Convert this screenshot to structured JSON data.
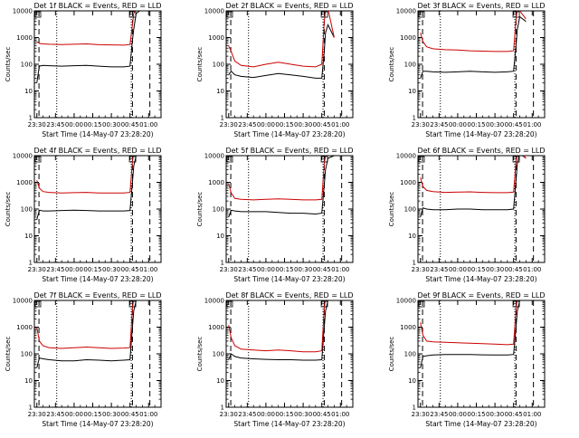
{
  "colors": {
    "background": "#ffffff",
    "events": "#000000",
    "lld": "#cc0000",
    "axis": "#000000"
  },
  "chart_data": [
    {
      "type": "line",
      "title": "Det 1f BLACK = Events, RED = LLD",
      "xlabel": "Start Time (14-May-07 23:28:20)",
      "ylabel": "Counts/sec",
      "xticks": [
        "23:30",
        "23:45",
        "00:00",
        "00:15",
        "00:30",
        "00:45",
        "01:00"
      ],
      "yticks": [
        "1",
        "10",
        "100",
        "1000",
        "10000"
      ],
      "yscale": "log",
      "ylim": [
        1,
        10000
      ],
      "xlim_minutes": [
        -2,
        100
      ],
      "series": [
        {
          "name": "Events",
          "color": "#000000",
          "x": [
            0,
            2,
            5,
            10,
            20,
            30,
            40,
            50,
            60,
            70,
            75,
            77,
            78,
            80,
            85
          ],
          "y": [
            20,
            85,
            90,
            88,
            85,
            88,
            90,
            85,
            80,
            80,
            85,
            800,
            2000,
            8000,
            12000
          ]
        },
        {
          "name": "LLD",
          "color": "#cc0000",
          "x": [
            0,
            2,
            5,
            10,
            20,
            30,
            40,
            50,
            60,
            70,
            75,
            77,
            78,
            80,
            85
          ],
          "y": [
            700,
            600,
            580,
            560,
            550,
            560,
            580,
            540,
            530,
            520,
            550,
            3000,
            8000,
            12000,
            15000
          ]
        }
      ]
    },
    {
      "type": "line",
      "title": "Det 2f BLACK = Events, RED = LLD",
      "xlabel": "Start Time (14-May-07 23:28:20)",
      "ylabel": "Counts/sec",
      "xticks": [
        "23:30",
        "23:45",
        "00:00",
        "00:15",
        "00:30",
        "00:45",
        "01:00"
      ],
      "yticks": [
        "1",
        "10",
        "100",
        "1000",
        "10000"
      ],
      "yscale": "log",
      "ylim": [
        1,
        10000
      ],
      "xlim_minutes": [
        -2,
        100
      ],
      "series": [
        {
          "name": "Events",
          "color": "#000000",
          "x": [
            0,
            2,
            5,
            10,
            20,
            30,
            40,
            50,
            60,
            70,
            75,
            77,
            78,
            80,
            85
          ],
          "y": [
            40,
            55,
            40,
            35,
            32,
            38,
            45,
            40,
            35,
            30,
            30,
            300,
            1500,
            3000,
            1000
          ]
        },
        {
          "name": "LLD",
          "color": "#cc0000",
          "x": [
            0,
            2,
            5,
            10,
            20,
            30,
            40,
            50,
            60,
            70,
            75,
            77,
            78,
            80,
            85
          ],
          "y": [
            500,
            300,
            130,
            90,
            80,
            100,
            120,
            100,
            85,
            80,
            100,
            4000,
            10000,
            12000,
            1000
          ]
        }
      ]
    },
    {
      "type": "line",
      "title": "Det 3f BLACK = Events, RED = LLD",
      "xlabel": "Start Time (14-May-07 23:28:20)",
      "ylabel": "Counts/sec",
      "xticks": [
        "23:30",
        "23:45",
        "00:00",
        "00:15",
        "00:30",
        "00:45",
        "01:00"
      ],
      "yticks": [
        "1",
        "10",
        "100",
        "1000",
        "10000"
      ],
      "yscale": "log",
      "ylim": [
        1,
        10000
      ],
      "xlim_minutes": [
        -2,
        100
      ],
      "series": [
        {
          "name": "Events",
          "color": "#000000",
          "x": [
            0,
            2,
            5,
            10,
            20,
            30,
            40,
            50,
            60,
            70,
            75,
            77,
            78,
            80,
            85
          ],
          "y": [
            30,
            55,
            55,
            52,
            50,
            52,
            55,
            52,
            50,
            52,
            55,
            500,
            2000,
            6000,
            4000
          ]
        },
        {
          "name": "LLD",
          "color": "#cc0000",
          "x": [
            0,
            2,
            5,
            10,
            20,
            30,
            40,
            50,
            60,
            70,
            75,
            77,
            78,
            80,
            85
          ],
          "y": [
            1500,
            700,
            450,
            380,
            350,
            340,
            320,
            310,
            300,
            300,
            320,
            5000,
            12000,
            10000,
            5000
          ]
        }
      ]
    },
    {
      "type": "line",
      "title": "Det 4f BLACK = Events, RED = LLD",
      "xlabel": "Start Time (14-May-07 23:28:20)",
      "ylabel": "Counts/sec",
      "xticks": [
        "23:30",
        "23:45",
        "00:00",
        "00:15",
        "00:30",
        "00:45",
        "01:00"
      ],
      "yticks": [
        "1",
        "10",
        "100",
        "1000",
        "10000"
      ],
      "yscale": "log",
      "ylim": [
        1,
        10000
      ],
      "xlim_minutes": [
        -2,
        100
      ],
      "series": [
        {
          "name": "Events",
          "color": "#000000",
          "x": [
            0,
            2,
            5,
            10,
            20,
            30,
            40,
            50,
            60,
            70,
            75,
            77,
            78,
            80,
            85
          ],
          "y": [
            40,
            90,
            85,
            85,
            88,
            90,
            88,
            85,
            85,
            85,
            88,
            1000,
            4000,
            10000,
            12000
          ]
        },
        {
          "name": "LLD",
          "color": "#cc0000",
          "x": [
            0,
            2,
            5,
            10,
            20,
            30,
            40,
            50,
            60,
            70,
            75,
            77,
            78,
            80,
            85
          ],
          "y": [
            1200,
            600,
            450,
            420,
            400,
            410,
            420,
            400,
            400,
            400,
            420,
            6000,
            12000,
            14000,
            15000
          ]
        }
      ]
    },
    {
      "type": "line",
      "title": "Det 5f BLACK = Events, RED = LLD",
      "xlabel": "Start Time (14-May-07 23:28:20)",
      "ylabel": "Counts/sec",
      "xticks": [
        "23:30",
        "23:45",
        "00:00",
        "00:15",
        "00:30",
        "00:45",
        "01:00"
      ],
      "yticks": [
        "1",
        "10",
        "100",
        "1000",
        "10000"
      ],
      "yscale": "log",
      "ylim": [
        1,
        10000
      ],
      "xlim_minutes": [
        -2,
        100
      ],
      "series": [
        {
          "name": "Events",
          "color": "#000000",
          "x": [
            0,
            2,
            5,
            10,
            20,
            30,
            40,
            50,
            60,
            70,
            75,
            77,
            78,
            80,
            85
          ],
          "y": [
            50,
            90,
            85,
            80,
            80,
            80,
            75,
            70,
            70,
            65,
            70,
            800,
            3000,
            8000,
            10000
          ]
        },
        {
          "name": "LLD",
          "color": "#cc0000",
          "x": [
            0,
            2,
            5,
            10,
            20,
            30,
            40,
            50,
            60,
            70,
            75,
            77,
            78,
            80,
            85
          ],
          "y": [
            900,
            400,
            250,
            230,
            220,
            230,
            240,
            230,
            220,
            220,
            230,
            5000,
            10000,
            12000,
            14000
          ]
        }
      ]
    },
    {
      "type": "line",
      "title": "Det 6f BLACK = Events, RED = LLD",
      "xlabel": "Start Time (14-May-07 23:28:20)",
      "ylabel": "Counts/sec",
      "xticks": [
        "23:30",
        "23:45",
        "00:00",
        "00:15",
        "00:30",
        "00:45",
        "01:00"
      ],
      "yticks": [
        "1",
        "10",
        "100",
        "1000",
        "10000"
      ],
      "yscale": "log",
      "ylim": [
        1,
        10000
      ],
      "xlim_minutes": [
        -2,
        100
      ],
      "series": [
        {
          "name": "Events",
          "color": "#000000",
          "x": [
            0,
            2,
            5,
            10,
            20,
            30,
            40,
            50,
            60,
            70,
            75,
            77,
            78,
            80,
            85
          ],
          "y": [
            50,
            110,
            100,
            95,
            95,
            100,
            100,
            95,
            95,
            95,
            100,
            1200,
            5000,
            12000,
            8000
          ]
        },
        {
          "name": "LLD",
          "color": "#cc0000",
          "x": [
            0,
            2,
            5,
            10,
            20,
            30,
            40,
            50,
            60,
            70,
            75,
            77,
            78,
            80,
            85
          ],
          "y": [
            1500,
            700,
            500,
            450,
            420,
            430,
            440,
            420,
            410,
            410,
            430,
            6000,
            12000,
            14000,
            8000
          ]
        }
      ]
    },
    {
      "type": "line",
      "title": "Det 7f BLACK = Events, RED = LLD",
      "xlabel": "Start Time (14-May-07 23:28:20)",
      "ylabel": "Counts/sec",
      "xticks": [
        "23:30",
        "23:45",
        "00:00",
        "00:15",
        "00:30",
        "00:45",
        "01:00"
      ],
      "yticks": [
        "1",
        "10",
        "100",
        "1000",
        "10000"
      ],
      "yscale": "log",
      "ylim": [
        1,
        10000
      ],
      "xlim_minutes": [
        -2,
        100
      ],
      "series": [
        {
          "name": "Events",
          "color": "#000000",
          "x": [
            0,
            2,
            5,
            10,
            20,
            30,
            40,
            50,
            60,
            70,
            75,
            77,
            78,
            80,
            85
          ],
          "y": [
            30,
            70,
            65,
            60,
            55,
            55,
            60,
            58,
            55,
            58,
            60,
            1000,
            4000,
            10000,
            12000
          ]
        },
        {
          "name": "LLD",
          "color": "#cc0000",
          "x": [
            0,
            2,
            5,
            10,
            20,
            30,
            40,
            50,
            60,
            70,
            75,
            77,
            78,
            80,
            85
          ],
          "y": [
            1000,
            300,
            200,
            170,
            160,
            170,
            180,
            170,
            160,
            165,
            170,
            5000,
            12000,
            14000,
            15000
          ]
        }
      ]
    },
    {
      "type": "line",
      "title": "Det 8f BLACK = Events, RED = LLD",
      "xlabel": "Start Time (14-May-07 23:28:20)",
      "ylabel": "Counts/sec",
      "xticks": [
        "23:30",
        "23:45",
        "00:00",
        "00:15",
        "00:30",
        "00:45",
        "01:00"
      ],
      "yticks": [
        "1",
        "10",
        "100",
        "1000",
        "10000"
      ],
      "yscale": "log",
      "ylim": [
        1,
        10000
      ],
      "xlim_minutes": [
        -2,
        100
      ],
      "series": [
        {
          "name": "Events",
          "color": "#000000",
          "x": [
            0,
            2,
            5,
            10,
            20,
            30,
            40,
            50,
            60,
            70,
            75,
            77,
            78,
            80,
            85
          ],
          "y": [
            60,
            100,
            80,
            70,
            65,
            62,
            60,
            60,
            58,
            58,
            60,
            1000,
            4000,
            10000,
            12000
          ]
        },
        {
          "name": "LLD",
          "color": "#cc0000",
          "x": [
            0,
            2,
            5,
            10,
            20,
            30,
            40,
            50,
            60,
            70,
            75,
            77,
            78,
            80,
            85
          ],
          "y": [
            1200,
            400,
            200,
            150,
            140,
            130,
            140,
            130,
            120,
            120,
            130,
            5000,
            12000,
            14000,
            15000
          ]
        }
      ]
    },
    {
      "type": "line",
      "title": "Det 9f BLACK = Events, RED = LLD",
      "xlabel": "Start Time (14-May-07 23:28:20)",
      "ylabel": "Counts/sec",
      "xticks": [
        "23:30",
        "23:45",
        "00:00",
        "00:15",
        "00:30",
        "00:45",
        "01:00"
      ],
      "yticks": [
        "1",
        "10",
        "100",
        "1000",
        "10000"
      ],
      "yscale": "log",
      "ylim": [
        1,
        10000
      ],
      "xlim_minutes": [
        -2,
        100
      ],
      "series": [
        {
          "name": "Events",
          "color": "#000000",
          "x": [
            0,
            2,
            5,
            10,
            20,
            30,
            40,
            50,
            60,
            70,
            75,
            77,
            78,
            80,
            85
          ],
          "y": [
            30,
            80,
            85,
            90,
            95,
            95,
            95,
            92,
            90,
            90,
            95,
            1000,
            4000,
            10000,
            12000
          ]
        },
        {
          "name": "LLD",
          "color": "#cc0000",
          "x": [
            0,
            2,
            5,
            10,
            20,
            30,
            40,
            50,
            60,
            70,
            75,
            77,
            78,
            80,
            85
          ],
          "y": [
            1500,
            500,
            300,
            280,
            270,
            260,
            250,
            240,
            230,
            220,
            230,
            5000,
            12000,
            14000,
            15000
          ]
        }
      ]
    }
  ]
}
